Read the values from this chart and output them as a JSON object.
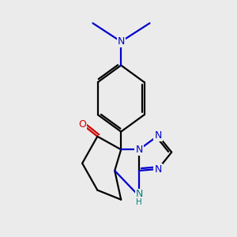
{
  "bg_color": "#ebebeb",
  "bond_color": "#000000",
  "N_color": "#0000cc",
  "O_color": "#cc0000",
  "NH_color": "#008080",
  "lw": 1.6,
  "figsize": [
    3.0,
    3.0
  ],
  "dpi": 100,
  "xlim": [
    -1.5,
    6.5
  ],
  "ylim": [
    -4.8,
    5.2
  ]
}
